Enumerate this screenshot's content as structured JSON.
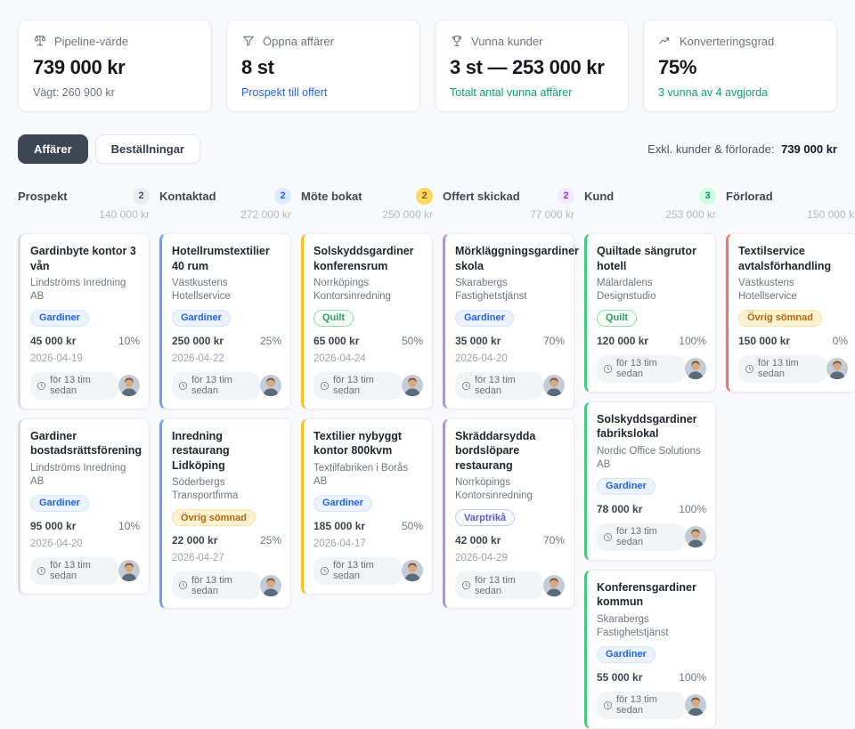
{
  "stats": [
    {
      "key": "pipeline-varde",
      "icon": "scale-icon",
      "label": "Pipeline-värde",
      "value": "739 000 kr",
      "sub": "Vägt: 260 900 kr",
      "sub_type": "muted",
      "sub_interactable": false
    },
    {
      "key": "oppna-affarer",
      "icon": "funnel-icon",
      "label": "Öppna affärer",
      "value": "8 st",
      "sub": "Prospekt till offert",
      "sub_type": "link",
      "sub_interactable": true
    },
    {
      "key": "vunna-kunder",
      "icon": "trophy-icon",
      "label": "Vunna kunder",
      "value": "3 st — 253 000 kr",
      "sub": "Totalt antal vunna affärer",
      "sub_type": "success",
      "sub_interactable": false
    },
    {
      "key": "konverteringsgrad",
      "icon": "trend-up-icon",
      "label": "Konverteringsgrad",
      "value": "75%",
      "sub": "3 vunna av 4 avgjorda",
      "sub_type": "success",
      "sub_interactable": false
    }
  ],
  "tabs": [
    {
      "label": "Affärer",
      "active": true
    },
    {
      "label": "Beställningar",
      "active": false
    }
  ],
  "summary": {
    "label": "Exkl. kunder & förlorade:",
    "value": "739 000 kr"
  },
  "colors": {
    "link": "#2563eb",
    "success": "#0e9f6e",
    "active_tab_bg": "#3d4653"
  },
  "tag_styles": {
    "blue": {
      "bg": "#eaf2fe",
      "text": "#2563eb",
      "border": "#d6e4fc"
    },
    "green": {
      "bg": "#f6fdf8",
      "text": "#2f9e5f",
      "border": "#8fdcab"
    },
    "amber": {
      "bg": "#fdf1cf",
      "text": "#b16a12",
      "border": "#f8e3ab"
    },
    "violet": {
      "bg": "#f8f8ff",
      "text": "#5b5bd6",
      "border": "#c6c9f4"
    }
  },
  "board": {
    "columns": [
      {
        "key": "prospekt",
        "name": "Prospekt",
        "count": "2",
        "total": "140 000 kr",
        "accent": "#d8dce1",
        "count_bg": "#e9ecef",
        "count_color": "#4b5563",
        "cards": [
          {
            "title": "Gardinbyte kontor 3 vån",
            "company": "Lindströms Inredning AB",
            "tag": "Gardiner",
            "tag_style": "blue",
            "amount": "45 000 kr",
            "probability": "10%",
            "date": "2026-04-19",
            "updated": "för 13 tim sedan"
          },
          {
            "title": "Gardiner bostadsrättsförening",
            "company": "Lindströms Inredning AB",
            "tag": "Gardiner",
            "tag_style": "blue",
            "amount": "95 000 kr",
            "probability": "10%",
            "date": "2026-04-20",
            "updated": "för 13 tim sedan"
          }
        ]
      },
      {
        "key": "kontaktad",
        "name": "Kontaktad",
        "count": "2",
        "total": "272 000 kr",
        "accent": "#60a5fa",
        "count_bg": "#dbeafe",
        "count_color": "#2563eb",
        "cards": [
          {
            "title": "Hotellrumstextilier 40 rum",
            "company": "Västkustens Hotellservice",
            "tag": "Gardiner",
            "tag_style": "blue",
            "amount": "250 000 kr",
            "probability": "25%",
            "date": "2026-04-22",
            "updated": "för 13 tim sedan"
          },
          {
            "title": "Inredning restaurang Lidköping",
            "company": "Söderbergs Transportfirma",
            "tag": "Övrig sömnad",
            "tag_style": "amber",
            "amount": "22 000 kr",
            "probability": "25%",
            "date": "2026-04-27",
            "updated": "för 13 tim sedan"
          }
        ]
      },
      {
        "key": "mote-bokat",
        "name": "Möte bokat",
        "count": "2",
        "total": "250 000 kr",
        "accent": "#fbbf24",
        "count_bg": "#fbd861",
        "count_color": "#8a5a0a",
        "cards": [
          {
            "title": "Solskyddsgardiner konferensrum",
            "company": "Norrköpings Kontorsinredning",
            "tag": "Quilt",
            "tag_style": "green",
            "amount": "65 000 kr",
            "probability": "50%",
            "date": "2026-04-24",
            "updated": "för 13 tim sedan"
          },
          {
            "title": "Textilier nybyggt kontor 800kvm",
            "company": "Textilfabriken i Borås AB",
            "tag": "Gardiner",
            "tag_style": "blue",
            "amount": "185 000 kr",
            "probability": "50%",
            "date": "2026-04-17",
            "updated": "för 13 tim sedan"
          }
        ]
      },
      {
        "key": "offert-skickad",
        "name": "Offert skickad",
        "count": "2",
        "total": "77 000 kr",
        "accent": "#b48df2",
        "count_bg": "#f3e8ff",
        "count_color": "#9333ea",
        "cards": [
          {
            "title": "Mörkläggningsgardiner skola",
            "company": "Skarabergs Fastighetstjänst",
            "tag": "Gardiner",
            "tag_style": "blue",
            "amount": "35 000 kr",
            "probability": "70%",
            "date": "2026-04-20",
            "updated": "för 13 tim sedan"
          },
          {
            "title": "Skräddarsydda bordslöpare restaurang",
            "company": "Norrköpings Kontorsinredning",
            "tag": "Varptrikå",
            "tag_style": "violet",
            "amount": "42 000 kr",
            "probability": "70%",
            "date": "2026-04-29",
            "updated": "för 13 tim sedan"
          }
        ]
      },
      {
        "key": "kund",
        "name": "Kund",
        "count": "3",
        "total": "253 000 kr",
        "accent": "#3ccb7f",
        "count_bg": "#d1fae5",
        "count_color": "#059669",
        "cards": [
          {
            "title": "Quiltade sängrutor hotell",
            "company": "Mälardalens Designstudio",
            "tag": "Quilt",
            "tag_style": "green",
            "amount": "120 000 kr",
            "probability": "100%",
            "date": null,
            "updated": "för 13 tim sedan"
          },
          {
            "title": "Solskyddsgardiner fabrikslokal",
            "company": "Nordic Office Solutions AB",
            "tag": "Gardiner",
            "tag_style": "blue",
            "amount": "78 000 kr",
            "probability": "100%",
            "date": null,
            "updated": "för 13 tim sedan"
          },
          {
            "title": "Konferensgardiner kommun",
            "company": "Skarabergs Fastighetstjänst",
            "tag": "Gardiner",
            "tag_style": "blue",
            "amount": "55 000 kr",
            "probability": "100%",
            "date": null,
            "updated": "för 13 tim sedan"
          }
        ]
      },
      {
        "key": "forlorad",
        "name": "Förlorad",
        "count": null,
        "total": "150 000 kr",
        "accent": "#f87171",
        "count_bg": "#fee2e2",
        "count_color": "#dc2626",
        "cards": [
          {
            "title": "Textilservice avtalsförhandling",
            "company": "Västkustens Hotellservice",
            "tag": "Övrig sömnad",
            "tag_style": "amber",
            "amount": "150 000 kr",
            "probability": "0%",
            "date": null,
            "updated": "för 13 tim sedan"
          }
        ]
      }
    ]
  }
}
